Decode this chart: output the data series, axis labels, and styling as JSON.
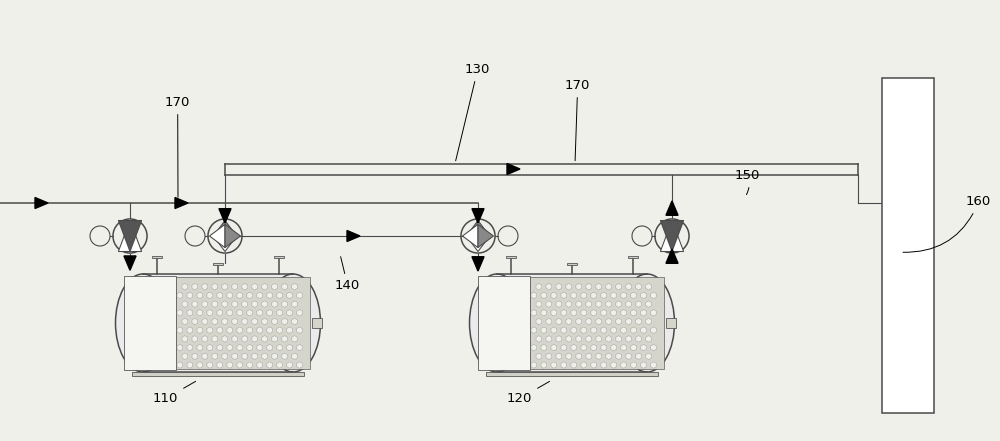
{
  "bg_color": "#f0f0eb",
  "line_color": "#4a4a4a",
  "tank1_label": "110",
  "tank2_label": "120",
  "pipe_label": "130",
  "heat_label": "140",
  "label_150": "150",
  "label_160": "160",
  "label_170a": "170",
  "label_170b": "170",
  "figsize": [
    10.0,
    4.41
  ],
  "dpi": 100,
  "xlim": [
    0,
    10
  ],
  "ylim": [
    0,
    4.41
  ]
}
